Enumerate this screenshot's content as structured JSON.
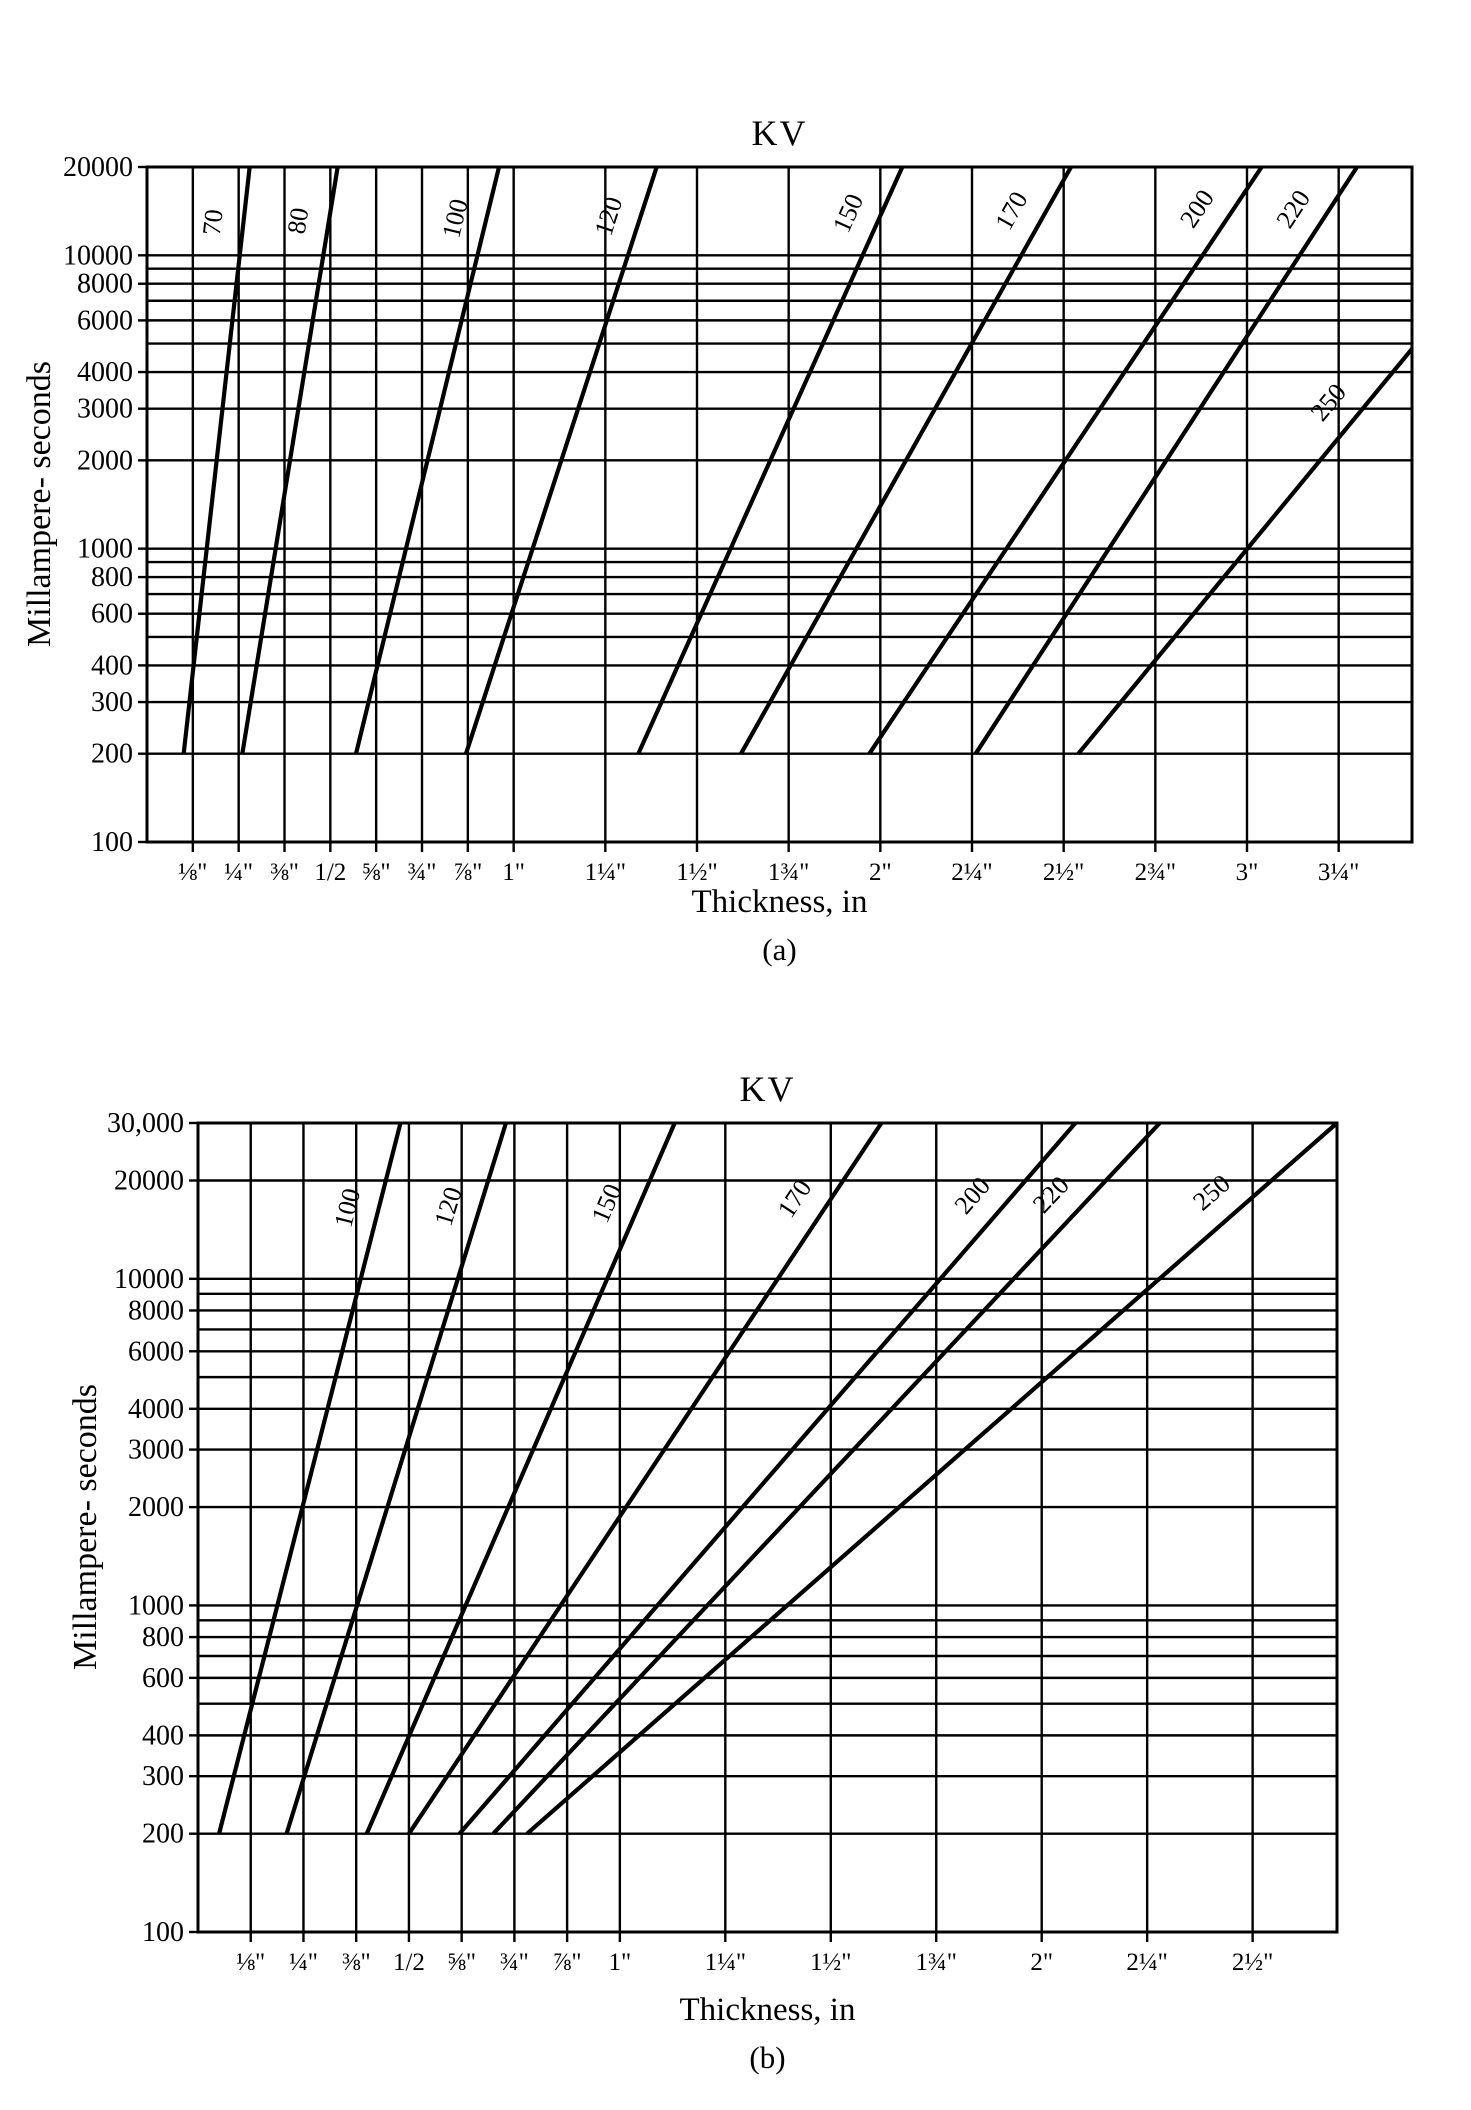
{
  "page": {
    "background": "#ffffff",
    "line_color": "#000000"
  },
  "chart_data": [
    {
      "id": "a",
      "type": "line",
      "title": "KV",
      "ylabel": "Millampere- seconds",
      "xlabel": "Thickness, in",
      "caption": "(a)",
      "yscale": "log",
      "grid": true,
      "xlim": [
        0,
        3.45
      ],
      "ylim": [
        100,
        20000
      ],
      "y_ticks": [
        {
          "v": 100,
          "label": "100"
        },
        {
          "v": 200,
          "label": "200"
        },
        {
          "v": 300,
          "label": "300"
        },
        {
          "v": 400,
          "label": "400"
        },
        {
          "v": 600,
          "label": "600"
        },
        {
          "v": 800,
          "label": "800"
        },
        {
          "v": 1000,
          "label": "1000"
        },
        {
          "v": 2000,
          "label": "2000"
        },
        {
          "v": 3000,
          "label": "3000"
        },
        {
          "v": 4000,
          "label": "4000"
        },
        {
          "v": 6000,
          "label": "6000"
        },
        {
          "v": 8000,
          "label": "8000"
        },
        {
          "v": 10000,
          "label": "10000"
        },
        {
          "v": 20000,
          "label": "20000"
        }
      ],
      "x_ticks": [
        {
          "v": 0.125,
          "label": "⅛\""
        },
        {
          "v": 0.25,
          "label": "¼\""
        },
        {
          "v": 0.375,
          "label": "⅜\""
        },
        {
          "v": 0.5,
          "label": "1/2"
        },
        {
          "v": 0.625,
          "label": "⅝\""
        },
        {
          "v": 0.75,
          "label": "¾\""
        },
        {
          "v": 0.875,
          "label": "⅞\""
        },
        {
          "v": 1,
          "label": "1\""
        },
        {
          "v": 1.25,
          "label": "1¼\""
        },
        {
          "v": 1.5,
          "label": "1½\""
        },
        {
          "v": 1.75,
          "label": "1¾\""
        },
        {
          "v": 2,
          "label": "2\""
        },
        {
          "v": 2.25,
          "label": "2¼\""
        },
        {
          "v": 2.5,
          "label": "2½\""
        },
        {
          "v": 2.75,
          "label": "2¾\""
        },
        {
          "v": 3,
          "label": "3\""
        },
        {
          "v": 3.25,
          "label": "3¼\""
        }
      ],
      "grid_y": [
        200,
        300,
        400,
        500,
        600,
        700,
        800,
        900,
        1000,
        2000,
        3000,
        4000,
        5000,
        6000,
        7000,
        8000,
        9000,
        10000,
        20000
      ],
      "series": [
        {
          "kv": "70",
          "points": [
            [
              0.1,
              200
            ],
            [
              0.28,
              20000
            ]
          ],
          "label_t": 0.9
        },
        {
          "kv": "80",
          "points": [
            [
              0.26,
              200
            ],
            [
              0.52,
              20000
            ]
          ],
          "label_t": 0.9
        },
        {
          "kv": "100",
          "points": [
            [
              0.57,
              200
            ],
            [
              0.96,
              20000
            ]
          ],
          "label_t": 0.9
        },
        {
          "kv": "120",
          "points": [
            [
              0.87,
              200
            ],
            [
              1.39,
              20000
            ]
          ],
          "label_t": 0.9
        },
        {
          "kv": "150",
          "points": [
            [
              1.34,
              200
            ],
            [
              2.06,
              20000
            ]
          ],
          "label_t": 0.9
        },
        {
          "kv": "170",
          "points": [
            [
              1.62,
              200
            ],
            [
              2.52,
              20000
            ]
          ],
          "label_t": 0.9
        },
        {
          "kv": "200",
          "points": [
            [
              1.97,
              200
            ],
            [
              3.04,
              20000
            ]
          ],
          "label_t": 0.9
        },
        {
          "kv": "220",
          "points": [
            [
              2.26,
              200
            ],
            [
              3.3,
              20000
            ]
          ],
          "label_t": 0.9
        },
        {
          "kv": "250",
          "points": [
            [
              2.54,
              200
            ],
            [
              3.45,
              4800
            ]
          ],
          "label_t": 0.82
        }
      ]
    },
    {
      "id": "b",
      "type": "line",
      "title": "KV",
      "ylabel": "Millampere- seconds",
      "xlabel": "Thickness, in",
      "caption": "(b)",
      "yscale": "log",
      "grid": true,
      "xlim": [
        0,
        2.7
      ],
      "ylim": [
        100,
        30000
      ],
      "y_ticks": [
        {
          "v": 100,
          "label": "100"
        },
        {
          "v": 200,
          "label": "200"
        },
        {
          "v": 300,
          "label": "300"
        },
        {
          "v": 400,
          "label": "400"
        },
        {
          "v": 600,
          "label": "600"
        },
        {
          "v": 800,
          "label": "800"
        },
        {
          "v": 1000,
          "label": "1000"
        },
        {
          "v": 2000,
          "label": "2000"
        },
        {
          "v": 3000,
          "label": "3000"
        },
        {
          "v": 4000,
          "label": "4000"
        },
        {
          "v": 6000,
          "label": "6000"
        },
        {
          "v": 8000,
          "label": "8000"
        },
        {
          "v": 10000,
          "label": "10000"
        },
        {
          "v": 20000,
          "label": "20000"
        },
        {
          "v": 30000,
          "label": "30,000"
        }
      ],
      "x_ticks": [
        {
          "v": 0.125,
          "label": "⅛\""
        },
        {
          "v": 0.25,
          "label": "¼\""
        },
        {
          "v": 0.375,
          "label": "⅜\""
        },
        {
          "v": 0.5,
          "label": "1/2"
        },
        {
          "v": 0.625,
          "label": "⅝\""
        },
        {
          "v": 0.75,
          "label": "¾\""
        },
        {
          "v": 0.875,
          "label": "⅞\""
        },
        {
          "v": 1,
          "label": "1\""
        },
        {
          "v": 1.25,
          "label": "1¼\""
        },
        {
          "v": 1.5,
          "label": "1½\""
        },
        {
          "v": 1.75,
          "label": "1¾\""
        },
        {
          "v": 2,
          "label": "2\""
        },
        {
          "v": 2.25,
          "label": "2¼\""
        },
        {
          "v": 2.5,
          "label": "2½\""
        }
      ],
      "grid_y": [
        200,
        300,
        400,
        500,
        600,
        700,
        800,
        900,
        1000,
        2000,
        3000,
        4000,
        5000,
        6000,
        7000,
        8000,
        9000,
        10000,
        20000,
        30000
      ],
      "series": [
        {
          "kv": "100",
          "points": [
            [
              0.05,
              200
            ],
            [
              0.48,
              30000
            ]
          ],
          "label_t": 0.87
        },
        {
          "kv": "120",
          "points": [
            [
              0.21,
              200
            ],
            [
              0.73,
              30000
            ]
          ],
          "label_t": 0.87
        },
        {
          "kv": "150",
          "points": [
            [
              0.4,
              200
            ],
            [
              1.13,
              30000
            ]
          ],
          "label_t": 0.87
        },
        {
          "kv": "170",
          "points": [
            [
              0.5,
              200
            ],
            [
              1.62,
              30000
            ]
          ],
          "label_t": 0.87
        },
        {
          "kv": "200",
          "points": [
            [
              0.62,
              200
            ],
            [
              2.08,
              30000
            ]
          ],
          "label_t": 0.87
        },
        {
          "kv": "220",
          "points": [
            [
              0.7,
              200
            ],
            [
              2.28,
              30000
            ]
          ],
          "label_t": 0.87
        },
        {
          "kv": "250",
          "points": [
            [
              0.78,
              200
            ],
            [
              2.7,
              30000
            ]
          ],
          "label_t": 0.87
        }
      ]
    }
  ]
}
